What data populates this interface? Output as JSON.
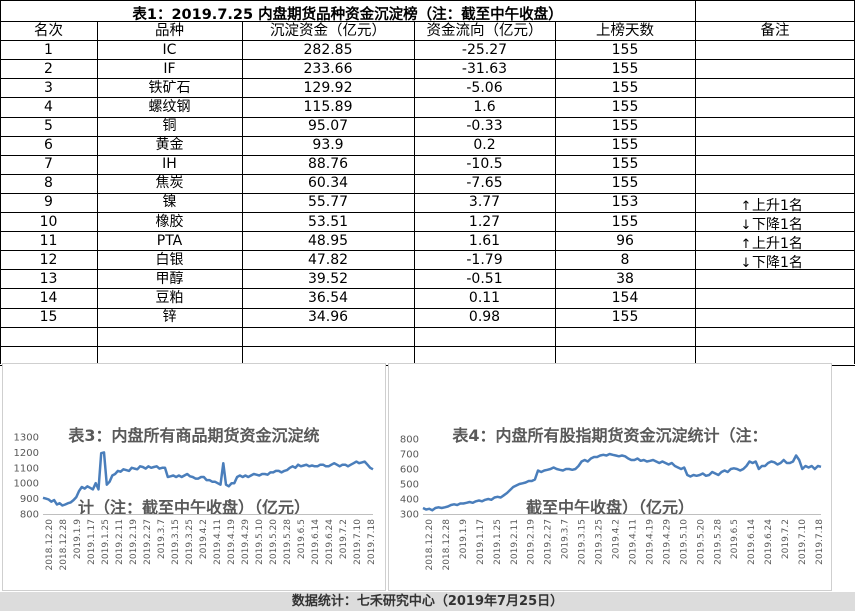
{
  "table": {
    "title": "表1：2019.7.25 内盘期货品种资金沉淀榜（注：截至中午收盘）",
    "headers": [
      "名次",
      "品种",
      "沉淀资金（亿元）",
      "资金流向（亿元）",
      "上榜天数",
      "备注"
    ],
    "rows": [
      [
        "1",
        "IC",
        "282.85",
        "-25.27",
        "155",
        ""
      ],
      [
        "2",
        "IF",
        "233.66",
        "-31.63",
        "155",
        ""
      ],
      [
        "3",
        "铁矿石",
        "129.92",
        "-5.06",
        "155",
        ""
      ],
      [
        "4",
        "螺纹钢",
        "115.89",
        "1.6",
        "155",
        ""
      ],
      [
        "5",
        "铜",
        "95.07",
        "-0.33",
        "155",
        ""
      ],
      [
        "6",
        "黄金",
        "93.9",
        "0.2",
        "155",
        ""
      ],
      [
        "7",
        "IH",
        "88.76",
        "-10.5",
        "155",
        ""
      ],
      [
        "8",
        "焦炭",
        "60.34",
        "-7.65",
        "155",
        ""
      ],
      [
        "9",
        "镍",
        "55.77",
        "3.77",
        "153",
        "上升1名"
      ],
      [
        "10",
        "橡胶",
        "53.51",
        "1.27",
        "155",
        "下降1名"
      ],
      [
        "11",
        "PTA",
        "48.95",
        "1.61",
        "96",
        "上升1名"
      ],
      [
        "12",
        "白银",
        "47.82",
        "-1.79",
        "8",
        "下降1名"
      ],
      [
        "13",
        "甲醇",
        "39.52",
        "-0.51",
        "38",
        ""
      ],
      [
        "14",
        "豆粕",
        "36.54",
        "0.11",
        "154",
        ""
      ],
      [
        "15",
        "锌",
        "34.96",
        "0.98",
        "155",
        ""
      ]
    ],
    "arrows": {
      "up": "↑",
      "down": "↓"
    },
    "arrow_dirs": [
      "",
      "",
      "",
      "",
      "",
      "",
      "",
      "",
      "up",
      "down",
      "up",
      "down",
      "",
      "",
      ""
    ]
  },
  "footer": "数据统计：七禾研究中心（2019年7月25日）",
  "colors": {
    "line": "#4a7ebb",
    "grid_line": "#000000",
    "axis_text": "#595959"
  },
  "chart_data": [
    {
      "type": "line",
      "title": "表3：内盘所有商品期货资金沉淀统计（注：截至中午收盘）（亿元）",
      "title_lines": [
        "表3：内盘所有商品期货资金沉淀统",
        "计（注：截至中午收盘）（亿元）"
      ],
      "ylim": [
        800,
        1300
      ],
      "yticks": [
        800,
        900,
        1000,
        1100,
        1200,
        1300
      ],
      "xtick_labels": [
        "2018.12.20",
        "2018.12.28",
        "2019.1.9",
        "2019.1.17",
        "2019.1.25",
        "2019.2.11",
        "2019.2.19",
        "2019.2.27",
        "2019.3.7",
        "2019.3.15",
        "2019.3.25",
        "2019.4.2",
        "2019.4.11",
        "2019.4.19",
        "2019.4.29",
        "2019.5.10",
        "2019.5.20",
        "2019.5.28",
        "2019.6.5",
        "2019.6.14",
        "2019.6.24",
        "2019.7.2",
        "2019.7.10",
        "2019.7.18"
      ],
      "values": [
        905,
        900,
        895,
        880,
        890,
        862,
        870,
        855,
        862,
        870,
        875,
        890,
        910,
        950,
        975,
        965,
        980,
        970,
        960,
        1000,
        960,
        1195,
        1200,
        990,
        1010,
        1050,
        1060,
        1080,
        1075,
        1090,
        1085,
        1080,
        1100,
        1095,
        1090,
        1110,
        1105,
        1095,
        1110,
        1100,
        1105,
        1110,
        1095,
        1100,
        1100,
        1040,
        1045,
        1050,
        1040,
        1050,
        1040,
        1050,
        1060,
        1045,
        1040,
        1030,
        1030,
        1040,
        1040,
        1020,
        1020,
        1010,
        1010,
        1000,
        990,
        1130,
        990,
        980,
        1000,
        1000,
        1040,
        1050,
        1040,
        1050,
        1040,
        1050,
        1060,
        1055,
        1050,
        1060,
        1060,
        1055,
        1070,
        1070,
        1080,
        1080,
        1070,
        1080,
        1085,
        1100,
        1110,
        1100,
        1120,
        1110,
        1115,
        1120,
        1110,
        1115,
        1110,
        1110,
        1120,
        1120,
        1110,
        1110,
        1120,
        1130,
        1120,
        1110,
        1120,
        1120,
        1110,
        1120,
        1130,
        1140,
        1130,
        1135,
        1140,
        1120,
        1100,
        1090
      ]
    },
    {
      "type": "line",
      "title": "表4：内盘所有股指期货资金沉淀统计（注：截至中午收盘）（亿元）",
      "title_lines": [
        "表4：内盘所有股指期货资金沉淀统计（注：",
        "截至中午收盘）（亿元）"
      ],
      "ylim": [
        300,
        800
      ],
      "yticks": [
        300,
        400,
        500,
        600,
        700,
        800
      ],
      "xtick_labels": [
        "2018.12.20",
        "2018.12.28",
        "2019.1.9",
        "2019.1.17",
        "2019.1.25",
        "2019.2.11",
        "2019.2.19",
        "2019.2.27",
        "2019.3.7",
        "2019.3.15",
        "2019.3.25",
        "2019.4.2",
        "2019.4.11",
        "2019.4.19",
        "2019.4.29",
        "2019.5.10",
        "2019.5.20",
        "2019.5.28",
        "2019.6.5",
        "2019.6.14",
        "2019.6.24",
        "2019.7.2",
        "2019.7.10",
        "2019.7.18"
      ],
      "values": [
        340,
        330,
        335,
        325,
        340,
        345,
        340,
        345,
        350,
        360,
        365,
        360,
        370,
        370,
        375,
        380,
        375,
        385,
        390,
        385,
        395,
        400,
        395,
        410,
        415,
        410,
        425,
        440,
        460,
        480,
        490,
        500,
        505,
        510,
        520,
        520,
        530,
        590,
        580,
        590,
        595,
        600,
        610,
        600,
        595,
        590,
        600,
        600,
        595,
        600,
        620,
        650,
        660,
        650,
        670,
        680,
        680,
        690,
        695,
        690,
        700,
        695,
        690,
        685,
        690,
        685,
        670,
        660,
        660,
        670,
        655,
        660,
        650,
        655,
        660,
        650,
        640,
        650,
        640,
        630,
        640,
        620,
        610,
        600,
        610,
        560,
        550,
        560,
        555,
        560,
        570,
        555,
        560,
        580,
        570,
        560,
        580,
        590,
        580,
        600,
        605,
        600,
        590,
        600,
        620,
        650,
        640,
        650,
        600,
        620,
        620,
        640,
        650,
        645,
        630,
        640,
        660,
        640,
        640,
        650,
        690,
        660,
        600,
        620,
        610,
        620,
        600,
        620,
        615
      ]
    }
  ]
}
